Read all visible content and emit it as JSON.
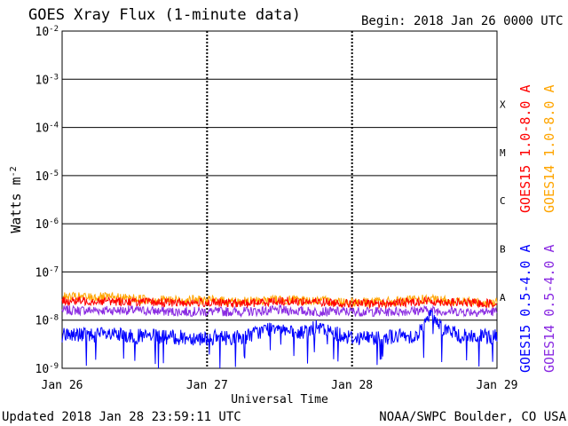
{
  "header": {
    "title": "GOES Xray Flux (1-minute data)",
    "begin_label": "Begin:",
    "begin_value": "2018 Jan 26 0000 UTC"
  },
  "footer": {
    "updated": "Updated 2018 Jan 28 23:59:11 UTC",
    "credit": "NOAA/SWPC Boulder, CO USA"
  },
  "chart_data": {
    "type": "line",
    "title": "GOES Xray Flux (1-minute data)",
    "xlabel": "Universal Time",
    "ylabel": "Watts m",
    "ylabel_sup": "-2",
    "yscale": "log",
    "ylim": [
      1e-09,
      0.01
    ],
    "xlim": [
      "2018 Jan 26 00:00",
      "2018 Jan 29 00:00"
    ],
    "x_ticks": [
      "Jan 26",
      "Jan 27",
      "Jan 28",
      "Jan 29"
    ],
    "y_ticks": [
      {
        "base": "10",
        "exp": "-9",
        "value": 1e-09
      },
      {
        "base": "10",
        "exp": "-8",
        "value": 1e-08
      },
      {
        "base": "10",
        "exp": "-7",
        "value": 1e-07
      },
      {
        "base": "10",
        "exp": "-6",
        "value": 1e-06
      },
      {
        "base": "10",
        "exp": "-5",
        "value": 1e-05
      },
      {
        "base": "10",
        "exp": "-4",
        "value": 0.0001
      },
      {
        "base": "10",
        "exp": "-3",
        "value": 0.001
      },
      {
        "base": "10",
        "exp": "-2",
        "value": 0.01
      }
    ],
    "flare_classes": [
      {
        "label": "A",
        "value": 3e-08
      },
      {
        "label": "B",
        "value": 3e-07
      },
      {
        "label": "C",
        "value": 3e-06
      },
      {
        "label": "M",
        "value": 3e-05
      },
      {
        "label": "X",
        "value": 0.0003
      }
    ],
    "grid": true,
    "legend_position": "right, rotated",
    "series": [
      {
        "name": "GOES15 1.0-8.0 A",
        "color": "#ff0000",
        "days": [
          0,
          0.25,
          0.5,
          0.75,
          1.0,
          1.25,
          1.5,
          1.75,
          2.0,
          2.25,
          2.5,
          2.75,
          3.0
        ],
        "values": [
          2.5e-08,
          2.5e-08,
          2.4e-08,
          2.3e-08,
          2.3e-08,
          2.2e-08,
          2.5e-08,
          2.4e-08,
          2.2e-08,
          2.2e-08,
          2.5e-08,
          2.3e-08,
          2.2e-08
        ]
      },
      {
        "name": "GOES14 1.0-8.0 A",
        "color": "#ffa500",
        "days": [
          0,
          0.25,
          0.5,
          0.75,
          1.0,
          1.25,
          1.5,
          1.75,
          2.0,
          2.25,
          2.5,
          2.75,
          3.0
        ],
        "values": [
          3e-08,
          3e-08,
          2.8e-08,
          2.6e-08,
          2.6e-08,
          2.4e-08,
          2.7e-08,
          2.5e-08,
          2.4e-08,
          2.4e-08,
          2.7e-08,
          2.4e-08,
          2.3e-08
        ]
      },
      {
        "name": "GOES15 0.5-4.0 A",
        "color": "#0000ff",
        "days": [
          0,
          0.25,
          0.5,
          0.75,
          1.0,
          1.25,
          1.5,
          1.6,
          1.75,
          2.0,
          2.25,
          2.45,
          2.55,
          2.62,
          2.75,
          3.0
        ],
        "values": [
          5e-09,
          5e-09,
          4.6e-09,
          4.4e-09,
          4.3e-09,
          4.4e-09,
          8e-09,
          4.8e-09,
          7e-09,
          4.3e-09,
          4.5e-09,
          4.8e-09,
          1.4e-08,
          7e-09,
          4.6e-09,
          4.5e-09
        ]
      },
      {
        "name": "GOES14 0.5-4.0 A",
        "color": "#8a2be2",
        "days": [
          0,
          0.25,
          0.5,
          0.75,
          1.0,
          1.25,
          1.5,
          1.75,
          2.0,
          2.25,
          2.5,
          2.75,
          3.0
        ],
        "values": [
          1.6e-08,
          1.6e-08,
          1.6e-08,
          1.5e-08,
          1.5e-08,
          1.5e-08,
          1.6e-08,
          1.5e-08,
          1.5e-08,
          1.5e-08,
          1.6e-08,
          1.5e-08,
          1.5e-08
        ]
      }
    ]
  }
}
